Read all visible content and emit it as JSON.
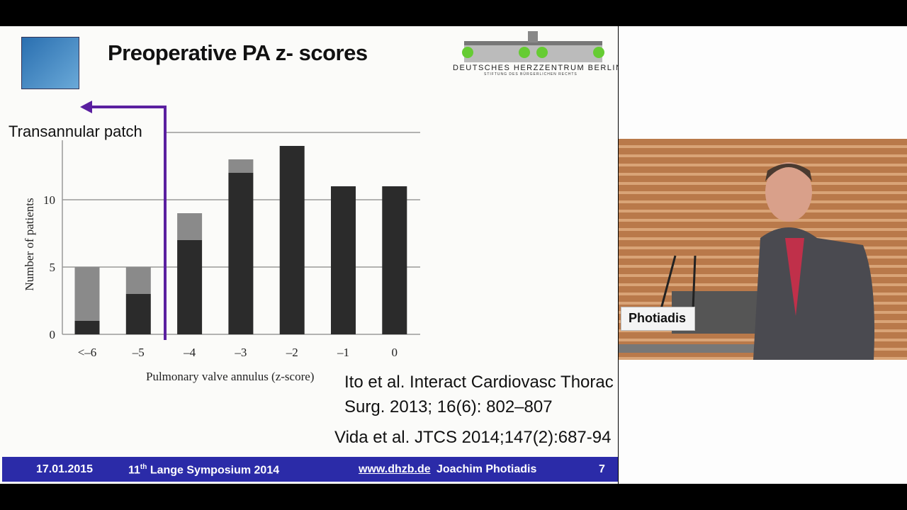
{
  "slide": {
    "title": "Preoperative PA z- scores",
    "logo": {
      "name": "DEUTSCHES HERZZENTRUM BERLIN®",
      "subtitle": "STIFTUNG DES BÜRGERLICHEN RECHTS"
    },
    "annotation": "Transannular patch",
    "annotation_color": "#5a1fa0",
    "references": [
      "Ito et al.  Interact Cardiovasc Thorac",
      "Surg. 2013; 16(6): 802–807",
      "Vida et  al. JTCS 2014;147(2):687-94"
    ],
    "footer": {
      "date": "17.01.2015",
      "event_prefix": "11",
      "event_sup": "th",
      "event_rest": " Lange Symposium 2014",
      "url": "www.dhzb.de",
      "author": "Joachim Photiadis",
      "page": "7"
    },
    "footer_color": "#2b2ba8"
  },
  "video": {
    "name_label": "Photiadis"
  },
  "chart_data": {
    "type": "bar",
    "stacked": true,
    "categories": [
      "<–6",
      "–5",
      "–4",
      "–3",
      "–2",
      "–1",
      "0"
    ],
    "series": [
      {
        "values": [
          1,
          3,
          7,
          12,
          14,
          11,
          11
        ],
        "color": "#2b2b2b"
      },
      {
        "values": [
          4,
          2,
          2,
          1,
          0,
          0,
          0
        ],
        "color": "#8a8a8a"
      }
    ],
    "xlabel": "Pulmonary valve annulus (z-score)",
    "ylabel": "Number of patients",
    "yticks": [
      0,
      5,
      10
    ],
    "ylim": [
      0,
      15
    ],
    "grid": true
  }
}
